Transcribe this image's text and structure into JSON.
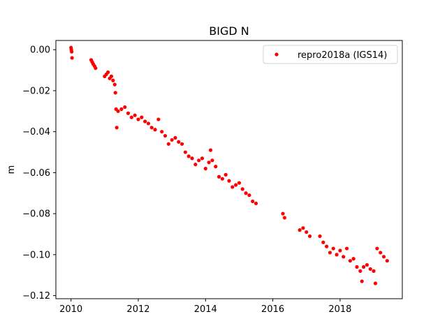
{
  "chart_data": {
    "type": "scatter",
    "title": "BIGD N",
    "xlabel": "",
    "ylabel": "m",
    "xlim": [
      2009.55,
      2019.85
    ],
    "ylim": [
      -0.1215,
      0.0045
    ],
    "x_ticks": [
      {
        "value": 2010,
        "label": "2010"
      },
      {
        "value": 2012,
        "label": "2012"
      },
      {
        "value": 2014,
        "label": "2014"
      },
      {
        "value": 2016,
        "label": "2016"
      },
      {
        "value": 2018,
        "label": "2018"
      }
    ],
    "y_ticks": [
      {
        "value": 0.0,
        "label": "0.00"
      },
      {
        "value": -0.02,
        "label": "−0.02"
      },
      {
        "value": -0.04,
        "label": "−0.04"
      },
      {
        "value": -0.06,
        "label": "−0.06"
      },
      {
        "value": -0.08,
        "label": "−0.08"
      },
      {
        "value": -0.1,
        "label": "−0.10"
      },
      {
        "value": -0.12,
        "label": "−0.12"
      }
    ],
    "legend": {
      "placement": "top-right"
    },
    "series": [
      {
        "name": "repro2018a (IGS14)",
        "color": "#ff0000",
        "marker": "circle",
        "points": [
          [
            2010.0,
            0.001
          ],
          [
            2010.01,
            0.0
          ],
          [
            2010.02,
            -0.001
          ],
          [
            2010.03,
            -0.004
          ],
          [
            2010.6,
            -0.005
          ],
          [
            2010.63,
            -0.006
          ],
          [
            2010.66,
            -0.007
          ],
          [
            2010.7,
            -0.008
          ],
          [
            2010.73,
            -0.009
          ],
          [
            2011.0,
            -0.013
          ],
          [
            2011.05,
            -0.012
          ],
          [
            2011.1,
            -0.011
          ],
          [
            2011.15,
            -0.014
          ],
          [
            2011.2,
            -0.013
          ],
          [
            2011.25,
            -0.015
          ],
          [
            2011.3,
            -0.017
          ],
          [
            2011.32,
            -0.021
          ],
          [
            2011.34,
            -0.029
          ],
          [
            2011.36,
            -0.038
          ],
          [
            2011.4,
            -0.03
          ],
          [
            2011.5,
            -0.029
          ],
          [
            2011.6,
            -0.028
          ],
          [
            2011.7,
            -0.031
          ],
          [
            2011.8,
            -0.033
          ],
          [
            2011.9,
            -0.032
          ],
          [
            2012.0,
            -0.034
          ],
          [
            2012.1,
            -0.033
          ],
          [
            2012.2,
            -0.035
          ],
          [
            2012.3,
            -0.036
          ],
          [
            2012.4,
            -0.038
          ],
          [
            2012.5,
            -0.039
          ],
          [
            2012.6,
            -0.034
          ],
          [
            2012.7,
            -0.04
          ],
          [
            2012.8,
            -0.042
          ],
          [
            2012.9,
            -0.046
          ],
          [
            2013.0,
            -0.044
          ],
          [
            2013.1,
            -0.043
          ],
          [
            2013.2,
            -0.045
          ],
          [
            2013.3,
            -0.046
          ],
          [
            2013.4,
            -0.05
          ],
          [
            2013.5,
            -0.052
          ],
          [
            2013.6,
            -0.053
          ],
          [
            2013.7,
            -0.056
          ],
          [
            2013.8,
            -0.054
          ],
          [
            2013.9,
            -0.053
          ],
          [
            2014.0,
            -0.058
          ],
          [
            2014.1,
            -0.055
          ],
          [
            2014.15,
            -0.049
          ],
          [
            2014.2,
            -0.054
          ],
          [
            2014.3,
            -0.057
          ],
          [
            2014.4,
            -0.062
          ],
          [
            2014.5,
            -0.063
          ],
          [
            2014.6,
            -0.061
          ],
          [
            2014.7,
            -0.064
          ],
          [
            2014.8,
            -0.067
          ],
          [
            2014.9,
            -0.066
          ],
          [
            2015.0,
            -0.065
          ],
          [
            2015.1,
            -0.068
          ],
          [
            2015.2,
            -0.07
          ],
          [
            2015.3,
            -0.071
          ],
          [
            2015.4,
            -0.074
          ],
          [
            2015.5,
            -0.075
          ],
          [
            2016.3,
            -0.08
          ],
          [
            2016.35,
            -0.082
          ],
          [
            2016.8,
            -0.088
          ],
          [
            2016.9,
            -0.087
          ],
          [
            2017.0,
            -0.089
          ],
          [
            2017.1,
            -0.091
          ],
          [
            2017.4,
            -0.091
          ],
          [
            2017.5,
            -0.094
          ],
          [
            2017.6,
            -0.096
          ],
          [
            2017.7,
            -0.099
          ],
          [
            2017.8,
            -0.097
          ],
          [
            2017.9,
            -0.1
          ],
          [
            2018.0,
            -0.098
          ],
          [
            2018.1,
            -0.101
          ],
          [
            2018.2,
            -0.097
          ],
          [
            2018.3,
            -0.103
          ],
          [
            2018.4,
            -0.102
          ],
          [
            2018.5,
            -0.106
          ],
          [
            2018.6,
            -0.108
          ],
          [
            2018.65,
            -0.113
          ],
          [
            2018.7,
            -0.106
          ],
          [
            2018.8,
            -0.105
          ],
          [
            2018.9,
            -0.107
          ],
          [
            2019.0,
            -0.108
          ],
          [
            2019.05,
            -0.114
          ],
          [
            2019.1,
            -0.097
          ],
          [
            2019.2,
            -0.099
          ],
          [
            2019.3,
            -0.101
          ],
          [
            2019.4,
            -0.103
          ]
        ]
      }
    ]
  }
}
